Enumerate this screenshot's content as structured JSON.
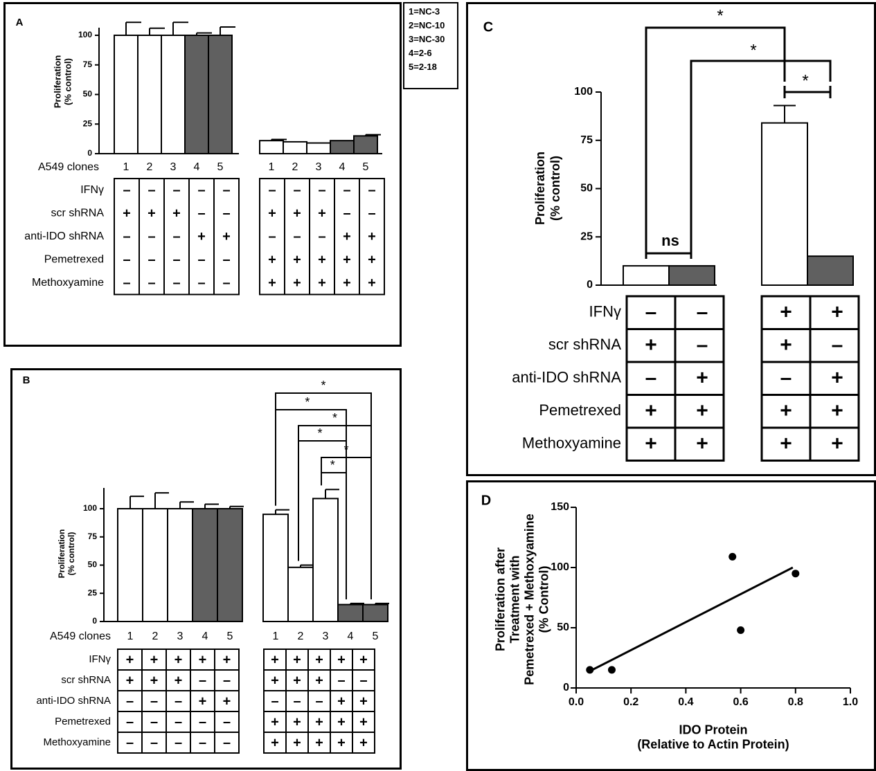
{
  "legend": [
    "1=NC-3",
    "2=NC-10",
    "3=NC-30",
    "4=2-6",
    "5=2-18"
  ],
  "row_labels": {
    "clones": "A549 clones",
    "ifng": "IFNγ",
    "scr": "scr shRNA",
    "antiido": "anti-IDO shRNA",
    "pem": "Pemetrexed",
    "meth": "Methoxyamine"
  },
  "chart_data": [
    {
      "panel": "A",
      "type": "bar",
      "ylabel": "Proliferation\n(% control)",
      "yticks": [
        0,
        25,
        50,
        75,
        100
      ],
      "ylim": [
        0,
        100
      ],
      "groups": [
        {
          "categories": [
            "1",
            "2",
            "3",
            "4",
            "5"
          ],
          "values": [
            100,
            100,
            100,
            100,
            100
          ],
          "errors": [
            11,
            6,
            11,
            2,
            7
          ],
          "fill": [
            "white",
            "white",
            "white",
            "gray",
            "gray"
          ]
        },
        {
          "categories": [
            "1",
            "2",
            "3",
            "4",
            "5"
          ],
          "values": [
            11,
            10,
            9,
            11,
            15
          ],
          "errors": [
            1,
            0,
            0,
            0,
            1
          ],
          "fill": [
            "white",
            "white",
            "white",
            "gray",
            "gray"
          ]
        }
      ],
      "table": [
        {
          "key": "ifng",
          "g1": [
            "-",
            "-",
            "-",
            "-",
            "-"
          ],
          "g2": [
            "-",
            "-",
            "-",
            "-",
            "-"
          ]
        },
        {
          "key": "scr",
          "g1": [
            "+",
            "+",
            "+",
            "-",
            "-"
          ],
          "g2": [
            "+",
            "+",
            "+",
            "-",
            "-"
          ]
        },
        {
          "key": "antiido",
          "g1": [
            "-",
            "-",
            "-",
            "+",
            "+"
          ],
          "g2": [
            "-",
            "-",
            "-",
            "+",
            "+"
          ]
        },
        {
          "key": "pem",
          "g1": [
            "-",
            "-",
            "-",
            "-",
            "-"
          ],
          "g2": [
            "+",
            "+",
            "+",
            "+",
            "+"
          ]
        },
        {
          "key": "meth",
          "g1": [
            "-",
            "-",
            "-",
            "-",
            "-"
          ],
          "g2": [
            "+",
            "+",
            "+",
            "+",
            "+"
          ]
        }
      ]
    },
    {
      "panel": "B",
      "type": "bar",
      "ylabel": "Proliferation\n(% control)",
      "yticks": [
        0,
        25,
        50,
        75,
        100
      ],
      "ylim": [
        0,
        100
      ],
      "groups": [
        {
          "categories": [
            "1",
            "2",
            "3",
            "4",
            "5"
          ],
          "values": [
            100,
            100,
            100,
            100,
            100
          ],
          "errors": [
            11,
            14,
            6,
            4,
            2
          ],
          "fill": [
            "white",
            "white",
            "white",
            "gray",
            "gray"
          ]
        },
        {
          "categories": [
            "1",
            "2",
            "3",
            "4",
            "5"
          ],
          "values": [
            95,
            48,
            109,
            15,
            15
          ],
          "errors": [
            4,
            2,
            8,
            1,
            1
          ],
          "fill": [
            "white",
            "white",
            "white",
            "gray",
            "gray"
          ]
        }
      ],
      "significance": [
        "*",
        "*",
        "*",
        "*",
        "*",
        "*"
      ],
      "table": [
        {
          "key": "ifng",
          "g1": [
            "+",
            "+",
            "+",
            "+",
            "+"
          ],
          "g2": [
            "+",
            "+",
            "+",
            "+",
            "+"
          ]
        },
        {
          "key": "scr",
          "g1": [
            "+",
            "+",
            "+",
            "-",
            "-"
          ],
          "g2": [
            "+",
            "+",
            "+",
            "-",
            "-"
          ]
        },
        {
          "key": "antiido",
          "g1": [
            "-",
            "-",
            "-",
            "+",
            "+"
          ],
          "g2": [
            "-",
            "-",
            "-",
            "+",
            "+"
          ]
        },
        {
          "key": "pem",
          "g1": [
            "-",
            "-",
            "-",
            "-",
            "-"
          ],
          "g2": [
            "+",
            "+",
            "+",
            "+",
            "+"
          ]
        },
        {
          "key": "meth",
          "g1": [
            "-",
            "-",
            "-",
            "-",
            "-"
          ],
          "g2": [
            "+",
            "+",
            "+",
            "+",
            "+"
          ]
        }
      ]
    },
    {
      "panel": "C",
      "type": "bar",
      "ylabel": "Proliferation\n(% control)",
      "yticks": [
        0,
        25,
        50,
        75,
        100
      ],
      "ylim": [
        0,
        100
      ],
      "groups": [
        {
          "values": [
            10,
            10
          ],
          "errors": [
            0,
            0
          ],
          "fill": [
            "white",
            "gray"
          ]
        },
        {
          "values": [
            84,
            15
          ],
          "errors": [
            9,
            0
          ],
          "fill": [
            "white",
            "gray"
          ]
        }
      ],
      "significance": [
        "*",
        "*",
        "*",
        "ns"
      ],
      "table": [
        {
          "key": "ifng",
          "g1": [
            "-",
            "-"
          ],
          "g2": [
            "+",
            "+"
          ]
        },
        {
          "key": "scr",
          "g1": [
            "+",
            "-"
          ],
          "g2": [
            "+",
            "-"
          ]
        },
        {
          "key": "antiido",
          "g1": [
            "-",
            "+"
          ],
          "g2": [
            "-",
            "+"
          ]
        },
        {
          "key": "pem",
          "g1": [
            "+",
            "+"
          ],
          "g2": [
            "+",
            "+"
          ]
        },
        {
          "key": "meth",
          "g1": [
            "+",
            "+"
          ],
          "g2": [
            "+",
            "+"
          ]
        }
      ]
    },
    {
      "panel": "D",
      "type": "scatter",
      "xlabel": "IDO Protein\n(Relative to Actin Protein)",
      "ylabel": "Proliferation after\nTreatment with\nPemetrexed + Methoxyamine\n(% Control)",
      "xlim": [
        0,
        1
      ],
      "ylim": [
        0,
        150
      ],
      "xticks": [
        "0.0",
        "0.2",
        "0.4",
        "0.6",
        "0.8",
        "1.0"
      ],
      "yticks": [
        "0",
        "50",
        "100",
        "150"
      ],
      "points": [
        {
          "x": 0.05,
          "y": 15
        },
        {
          "x": 0.13,
          "y": 15
        },
        {
          "x": 0.57,
          "y": 109
        },
        {
          "x": 0.6,
          "y": 48
        },
        {
          "x": 0.8,
          "y": 95
        }
      ],
      "fit_line": {
        "x1": 0.05,
        "y1": 14,
        "x2": 0.79,
        "y2": 100
      }
    }
  ]
}
